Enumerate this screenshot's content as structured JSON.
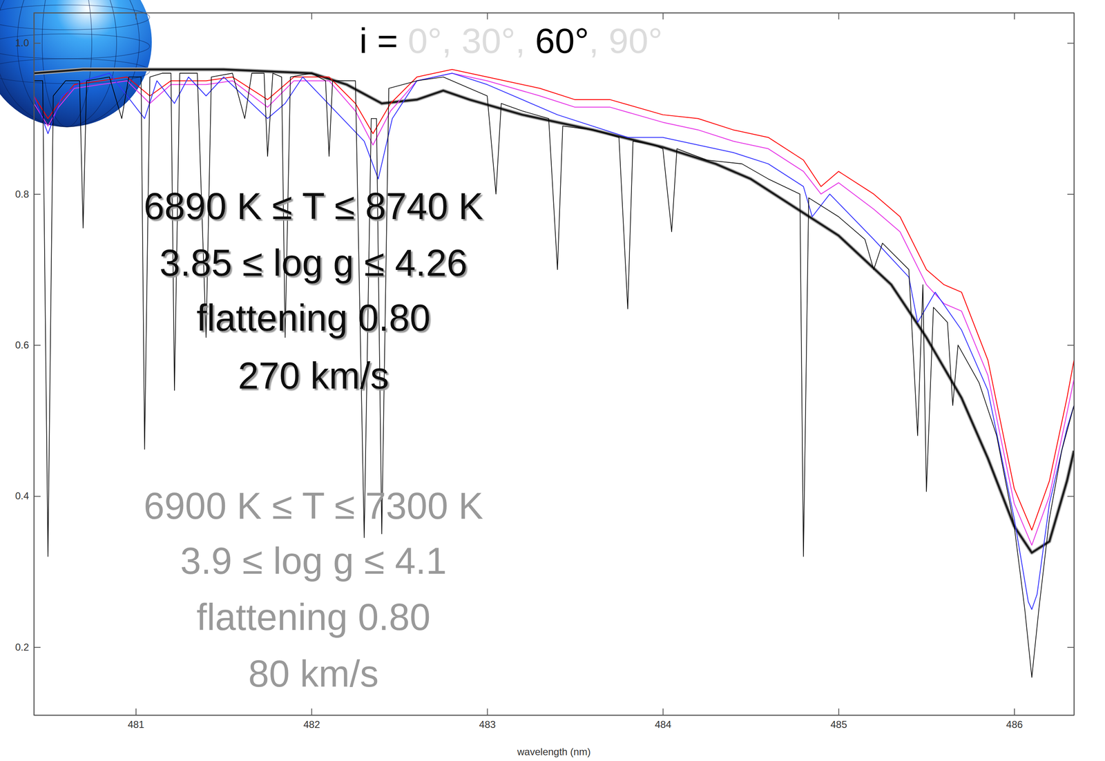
{
  "chart_data": {
    "type": "line",
    "title": [
      {
        "text": "i = ",
        "color": "#000000"
      },
      {
        "text": "0°, 30°, ",
        "color": "#dcdcdc"
      },
      {
        "text": "60°",
        "color": "#000000"
      },
      {
        "text": ", 90°",
        "color": "#dcdcdc"
      }
    ],
    "x_label": "wavelength (nm)",
    "xlim": [
      480.42,
      486.34
    ],
    "xticks": [
      481,
      482,
      483,
      484,
      485,
      486
    ],
    "ylim": [
      0.11,
      1.04
    ],
    "yticks": [
      0.2,
      0.4,
      0.6,
      0.8,
      {
        "value": 1,
        "label": "1.0"
      }
    ],
    "grid": false,
    "annotations": [
      {
        "text": "6890 K ≤ T ≤ 8740 K",
        "color": "#111111"
      },
      {
        "text": "3.85 ≤ log g ≤ 4.26",
        "color": "#111111"
      },
      {
        "text": "flattening 0.80",
        "color": "#111111"
      },
      {
        "text": "270 km/s",
        "color": "#111111"
      },
      {
        "text": "6900 K ≤ T ≤ 7300 K",
        "color": "#999999"
      },
      {
        "text": "3.9 ≤ log g ≤ 4.1",
        "color": "#999999"
      },
      {
        "text": "flattening 0.80",
        "color": "#999999"
      },
      {
        "text": "80 km/s",
        "color": "#999999"
      }
    ],
    "series": [
      {
        "color": "#1a1a1a",
        "line_style": "bold",
        "x": [
          480.42,
          480.7,
          481.0,
          481.5,
          482.0,
          482.2,
          482.4,
          482.6,
          482.75,
          482.9,
          483.2,
          483.6,
          484.0,
          484.3,
          484.5,
          484.8,
          485.0,
          485.3,
          485.5,
          485.7,
          485.85,
          486.0,
          486.1,
          486.2,
          486.3,
          486.34
        ],
        "values": [
          0.96,
          0.965,
          0.965,
          0.965,
          0.96,
          0.945,
          0.92,
          0.925,
          0.937,
          0.925,
          0.905,
          0.885,
          0.862,
          0.84,
          0.82,
          0.775,
          0.745,
          0.68,
          0.61,
          0.53,
          0.45,
          0.36,
          0.325,
          0.34,
          0.42,
          0.46
        ]
      },
      {
        "color": "#ff0000",
        "line_style": "solid",
        "x": [
          480.42,
          480.5,
          480.56,
          480.65,
          480.8,
          480.95,
          481.08,
          481.2,
          481.4,
          481.55,
          481.75,
          481.9,
          482.1,
          482.25,
          482.35,
          482.45,
          482.6,
          482.8,
          483.0,
          483.3,
          483.5,
          483.7,
          484.0,
          484.2,
          484.4,
          484.6,
          484.8,
          484.9,
          485.0,
          485.2,
          485.35,
          485.5,
          485.6,
          485.7,
          485.85,
          486.0,
          486.1,
          486.2,
          486.3,
          486.34
        ],
        "values": [
          0.93,
          0.9,
          0.92,
          0.945,
          0.95,
          0.955,
          0.93,
          0.95,
          0.95,
          0.955,
          0.925,
          0.955,
          0.955,
          0.92,
          0.88,
          0.92,
          0.955,
          0.965,
          0.955,
          0.94,
          0.925,
          0.925,
          0.905,
          0.9,
          0.885,
          0.875,
          0.845,
          0.81,
          0.83,
          0.8,
          0.77,
          0.7,
          0.68,
          0.67,
          0.58,
          0.41,
          0.355,
          0.42,
          0.53,
          0.58
        ]
      },
      {
        "color": "#e632e6",
        "line_style": "solid",
        "x": [
          480.42,
          480.5,
          480.56,
          480.65,
          480.8,
          480.95,
          481.08,
          481.2,
          481.4,
          481.55,
          481.75,
          481.9,
          482.1,
          482.25,
          482.35,
          482.45,
          482.6,
          482.8,
          483.0,
          483.3,
          483.5,
          483.7,
          484.0,
          484.2,
          484.4,
          484.6,
          484.8,
          484.9,
          485.0,
          485.2,
          485.35,
          485.5,
          485.6,
          485.7,
          485.85,
          486.0,
          486.1,
          486.2,
          486.3,
          486.34
        ],
        "values": [
          0.92,
          0.89,
          0.915,
          0.94,
          0.945,
          0.95,
          0.92,
          0.945,
          0.945,
          0.95,
          0.915,
          0.95,
          0.95,
          0.91,
          0.865,
          0.91,
          0.95,
          0.96,
          0.95,
          0.93,
          0.915,
          0.915,
          0.895,
          0.885,
          0.87,
          0.86,
          0.83,
          0.8,
          0.815,
          0.78,
          0.75,
          0.68,
          0.655,
          0.645,
          0.56,
          0.39,
          0.335,
          0.4,
          0.51,
          0.555
        ]
      },
      {
        "color": "#3333ff",
        "line_style": "solid",
        "x": [
          480.42,
          480.5,
          480.58,
          480.7,
          480.85,
          480.95,
          481.05,
          481.12,
          481.22,
          481.3,
          481.4,
          481.5,
          481.75,
          481.85,
          481.95,
          482.3,
          482.38,
          482.46,
          482.6,
          482.8,
          483.0,
          483.4,
          483.8,
          484.0,
          484.2,
          484.4,
          484.6,
          484.8,
          484.85,
          484.95,
          485.2,
          485.4,
          485.45,
          485.55,
          485.7,
          485.85,
          486.0,
          486.08,
          486.1,
          486.13,
          486.2,
          486.3,
          486.34
        ],
        "values": [
          0.93,
          0.88,
          0.93,
          0.95,
          0.96,
          0.93,
          0.9,
          0.95,
          0.92,
          0.955,
          0.93,
          0.955,
          0.9,
          0.92,
          0.955,
          0.87,
          0.82,
          0.9,
          0.95,
          0.96,
          0.945,
          0.905,
          0.875,
          0.875,
          0.865,
          0.855,
          0.84,
          0.81,
          0.77,
          0.8,
          0.74,
          0.69,
          0.63,
          0.67,
          0.62,
          0.54,
          0.37,
          0.26,
          0.25,
          0.27,
          0.39,
          0.49,
          0.52
        ]
      },
      {
        "color": "#000000",
        "line_style": "solid",
        "x": [
          480.42,
          480.47,
          480.5,
          480.53,
          480.6,
          480.68,
          480.7,
          480.72,
          480.85,
          480.92,
          480.96,
          481.03,
          481.05,
          481.08,
          481.15,
          481.2,
          481.22,
          481.25,
          481.35,
          481.4,
          481.43,
          481.55,
          481.62,
          481.66,
          481.73,
          481.75,
          481.78,
          481.83,
          481.85,
          481.88,
          482.0,
          482.08,
          482.1,
          482.12,
          482.25,
          482.3,
          482.34,
          482.37,
          482.4,
          482.44,
          482.6,
          482.75,
          482.9,
          483.0,
          483.05,
          483.08,
          483.2,
          483.35,
          483.4,
          483.43,
          483.6,
          483.75,
          483.8,
          483.83,
          483.95,
          484.0,
          484.05,
          484.08,
          484.25,
          484.45,
          484.6,
          484.78,
          484.8,
          484.83,
          485.0,
          485.15,
          485.2,
          485.25,
          485.4,
          485.45,
          485.48,
          485.5,
          485.54,
          485.62,
          485.65,
          485.68,
          485.8,
          485.9,
          486.0,
          486.06,
          486.1,
          486.14,
          486.2,
          486.27,
          486.34
        ],
        "values": [
          0.95,
          0.95,
          0.32,
          0.93,
          0.95,
          0.95,
          0.755,
          0.95,
          0.955,
          0.9,
          0.955,
          0.955,
          0.462,
          0.955,
          0.96,
          0.96,
          0.54,
          0.96,
          0.96,
          0.61,
          0.955,
          0.96,
          0.9,
          0.96,
          0.96,
          0.85,
          0.96,
          0.955,
          0.61,
          0.955,
          0.96,
          0.95,
          0.85,
          0.95,
          0.95,
          0.345,
          0.9,
          0.9,
          0.35,
          0.94,
          0.95,
          0.955,
          0.94,
          0.93,
          0.8,
          0.92,
          0.91,
          0.9,
          0.7,
          0.89,
          0.885,
          0.875,
          0.648,
          0.87,
          0.865,
          0.86,
          0.75,
          0.86,
          0.845,
          0.84,
          0.82,
          0.8,
          0.32,
          0.795,
          0.77,
          0.74,
          0.7,
          0.735,
          0.7,
          0.48,
          0.68,
          0.406,
          0.65,
          0.63,
          0.52,
          0.6,
          0.55,
          0.48,
          0.36,
          0.25,
          0.16,
          0.25,
          0.37,
          0.46,
          0.52
        ]
      }
    ]
  }
}
